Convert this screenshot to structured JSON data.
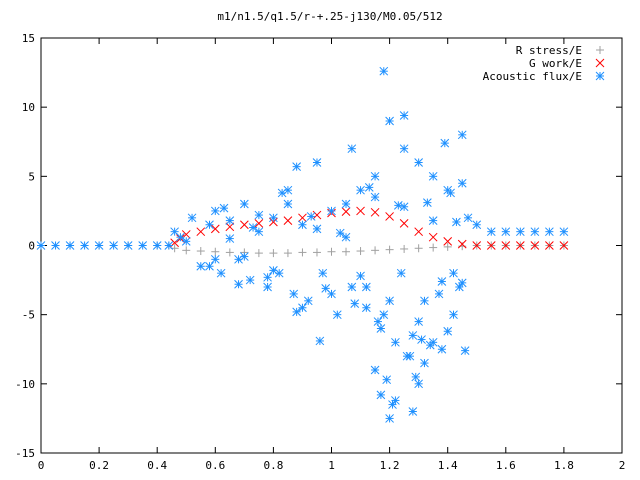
{
  "chart_data": {
    "type": "scatter",
    "title": "m1/n1.5/q1.5/r-+.25-j130/M0.05/512",
    "xlim": [
      0,
      2
    ],
    "ylim": [
      -15,
      15
    ],
    "xticks": [
      0,
      0.2,
      0.4,
      0.6,
      0.8,
      1,
      1.2,
      1.4,
      1.6,
      1.8,
      2
    ],
    "xtick_labels": [
      "0",
      "0.2",
      "0.4",
      "0.6",
      "0.8",
      "1",
      "1.2",
      "1.4",
      "1.6",
      "1.8",
      "2"
    ],
    "yticks": [
      -15,
      -10,
      -5,
      0,
      5,
      10,
      15
    ],
    "ytick_labels": [
      "-15",
      "-10",
      "-5",
      "0",
      "5",
      "10",
      "15"
    ],
    "grid": false,
    "legend_position": "top-right",
    "series": [
      {
        "name": "R stress/E",
        "marker": "plus",
        "color": "#a0a0a0",
        "x": [
          0.0,
          0.1,
          0.2,
          0.3,
          0.4,
          0.44,
          0.46,
          0.5,
          0.55,
          0.6,
          0.65,
          0.7,
          0.75,
          0.8,
          0.85,
          0.9,
          0.95,
          1.0,
          1.05,
          1.1,
          1.15,
          1.2,
          1.25,
          1.3,
          1.35,
          1.4,
          1.45,
          1.5,
          1.55,
          1.6,
          1.65,
          1.7,
          1.75,
          1.8
        ],
        "y": [
          0.0,
          0.0,
          0.0,
          0.0,
          0.0,
          0.0,
          -0.2,
          -0.35,
          -0.4,
          -0.45,
          -0.5,
          -0.5,
          -0.55,
          -0.55,
          -0.55,
          -0.5,
          -0.5,
          -0.45,
          -0.45,
          -0.4,
          -0.35,
          -0.3,
          -0.25,
          -0.2,
          -0.15,
          -0.1,
          -0.05,
          0.0,
          0.0,
          0.0,
          0.0,
          0.0,
          0.0,
          0.0
        ]
      },
      {
        "name": "G work/E",
        "marker": "cross",
        "color": "#ff0000",
        "x": [
          0.46,
          0.48,
          0.5,
          0.55,
          0.6,
          0.65,
          0.7,
          0.75,
          0.8,
          0.85,
          0.9,
          0.95,
          1.0,
          1.05,
          1.1,
          1.15,
          1.2,
          1.25,
          1.3,
          1.35,
          1.4,
          1.45,
          1.5,
          1.55,
          1.6,
          1.65,
          1.7,
          1.75,
          1.8
        ],
        "y": [
          0.2,
          0.5,
          0.8,
          1.0,
          1.2,
          1.35,
          1.5,
          1.6,
          1.7,
          1.8,
          2.0,
          2.2,
          2.35,
          2.45,
          2.5,
          2.4,
          2.1,
          1.6,
          1.0,
          0.6,
          0.3,
          0.1,
          0.0,
          0.0,
          0.0,
          0.0,
          0.0,
          0.0,
          0.0
        ]
      },
      {
        "name": "Acoustic flux/E",
        "marker": "star",
        "color": "#1e90ff",
        "x": [
          0.0,
          0.05,
          0.1,
          0.15,
          0.2,
          0.25,
          0.3,
          0.35,
          0.4,
          0.44,
          0.46,
          0.48,
          0.5,
          0.52,
          0.55,
          0.58,
          0.6,
          0.62,
          0.65,
          0.68,
          0.7,
          0.72,
          0.75,
          0.78,
          0.8,
          0.82,
          0.85,
          0.87,
          0.9,
          0.92,
          0.95,
          0.97,
          1.0,
          1.02,
          1.05,
          1.07,
          1.1,
          1.12,
          1.15,
          1.17,
          1.2,
          1.22,
          1.25,
          1.27,
          1.3,
          1.32,
          1.35,
          1.37,
          1.4,
          1.42,
          1.45,
          1.47,
          1.5,
          1.55,
          1.6,
          1.65,
          1.7,
          1.75,
          1.8,
          0.6,
          0.65,
          0.7,
          0.75,
          0.8,
          0.85,
          0.9,
          0.95,
          1.0,
          1.05,
          1.1,
          1.15,
          1.2,
          1.25,
          1.3,
          1.35,
          1.4,
          1.45,
          0.58,
          0.63,
          0.68,
          0.73,
          0.78,
          0.83,
          0.88,
          0.93,
          0.98,
          1.03,
          1.08,
          1.13,
          1.18,
          1.23,
          1.28,
          1.33,
          1.38,
          1.43,
          1.16,
          1.18,
          1.2,
          1.21,
          1.25,
          1.28,
          1.3,
          1.32,
          1.35,
          1.38,
          1.42,
          1.44,
          1.46,
          1.15,
          1.17,
          1.22,
          1.26,
          1.29,
          1.31,
          1.34,
          0.88,
          0.96,
          1.07,
          1.12,
          1.19,
          1.24,
          1.39,
          1.41,
          1.45
        ],
        "y": [
          0.0,
          0.0,
          0.0,
          0.0,
          0.0,
          0.0,
          0.0,
          0.0,
          0.0,
          0.0,
          1.0,
          0.6,
          0.3,
          2.0,
          -1.5,
          1.5,
          2.5,
          -2.0,
          1.8,
          -1.0,
          3.0,
          -2.5,
          1.0,
          -3.0,
          2.0,
          -2.0,
          4.0,
          -3.5,
          1.5,
          -4.0,
          6.0,
          -2.0,
          2.5,
          -5.0,
          3.0,
          -3.0,
          4.0,
          -4.5,
          5.0,
          -6.0,
          9.0,
          -7.0,
          7.0,
          -8.0,
          6.0,
          -4.0,
          5.0,
          -3.5,
          4.0,
          -2.0,
          8.0,
          2.0,
          1.5,
          1.0,
          1.0,
          1.0,
          1.0,
          1.0,
          1.0,
          -1.0,
          0.5,
          -0.8,
          2.2,
          -1.8,
          3.0,
          -4.5,
          1.2,
          -3.5,
          0.6,
          -2.2,
          3.5,
          -4.0,
          2.8,
          -5.5,
          1.8,
          -6.2,
          4.5,
          -1.5,
          2.7,
          -2.8,
          1.3,
          -2.3,
          3.8,
          -4.8,
          2.1,
          -3.1,
          0.9,
          -4.2,
          4.2,
          -5.0,
          2.9,
          -6.5,
          3.1,
          -2.6,
          1.7,
          -5.5,
          12.6,
          -12.5,
          -11.5,
          9.4,
          -12.0,
          -10.0,
          -8.5,
          -7.0,
          -7.5,
          -5.0,
          -3.0,
          -7.6,
          -9.0,
          -10.8,
          -11.2,
          -8.0,
          -9.5,
          -6.8,
          -7.2,
          5.7,
          -6.9,
          7.0,
          -3.0,
          -9.7,
          -2.0,
          7.4,
          3.8,
          -2.7
        ]
      }
    ]
  }
}
